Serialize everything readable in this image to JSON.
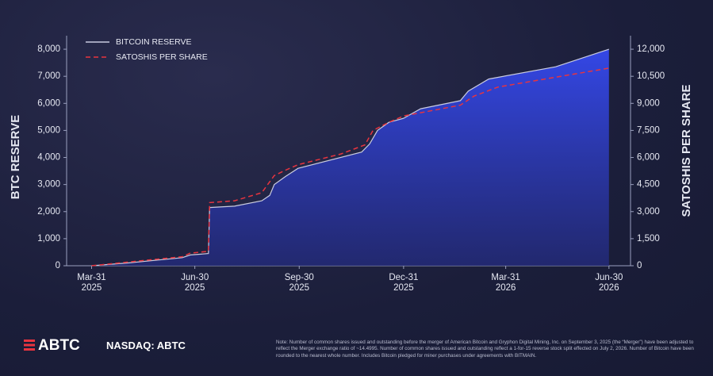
{
  "chart_data": {
    "type": "line",
    "y_label": "BTC RESERVE",
    "y2_label": "SATOSHIS PER SHARE",
    "xlim": [
      "2025-03-09",
      "2026-07-19"
    ],
    "xticks": [
      {
        "value": "2025-03-31",
        "label": [
          "Mar-31",
          "2025"
        ]
      },
      {
        "value": "2025-06-30",
        "label": [
          "Jun-30",
          "2025"
        ]
      },
      {
        "value": "2025-09-30",
        "label": [
          "Sep-30",
          "2025"
        ]
      },
      {
        "value": "2025-12-31",
        "label": [
          "Dec-31",
          "2025"
        ]
      },
      {
        "value": "2026-03-31",
        "label": [
          "Mar-31",
          "2026"
        ]
      },
      {
        "value": "2026-06-30",
        "label": [
          "Jun-30",
          "2026"
        ]
      }
    ],
    "ylim": [
      0,
      8500
    ],
    "yticks": [
      0,
      {
        "value": 1000,
        "label": "1,000"
      },
      {
        "value": 2000,
        "label": "2,000"
      },
      {
        "value": 3000,
        "label": "3,000"
      },
      {
        "value": 4000,
        "label": "4,000"
      },
      {
        "value": 5000,
        "label": "5,000"
      },
      {
        "value": 6000,
        "label": "6,000"
      },
      {
        "value": 7000,
        "label": "7,000"
      },
      {
        "value": 8000,
        "label": "8,000"
      }
    ],
    "y2lim": [
      0,
      12750
    ],
    "y2ticks": [
      0,
      {
        "value": 1500,
        "label": "1,500"
      },
      {
        "value": 3000,
        "label": "3,000"
      },
      {
        "value": 4500,
        "label": "4,500"
      },
      {
        "value": 6000,
        "label": "6,000"
      },
      {
        "value": 7500,
        "label": "7,500"
      },
      {
        "value": 9000,
        "label": "9,000"
      },
      {
        "value": 10500,
        "label": "10,500"
      },
      {
        "value": 12000,
        "label": "12,000"
      }
    ],
    "series": [
      {
        "name": "BITCOIN RESERVE",
        "color": "#c9cbe0",
        "area": true,
        "dash": false,
        "x": [
          "2025-03-31",
          "2025-05-01",
          "2025-06-19",
          "2025-06-26",
          "2025-07-12",
          "2025-07-13",
          "2025-08-04",
          "2025-08-28",
          "2025-09-04",
          "2025-09-08",
          "2025-09-18",
          "2025-09-29",
          "2025-11-24",
          "2025-12-01",
          "2025-12-08",
          "2025-12-18",
          "2025-12-31",
          "2026-01-15",
          "2026-02-19",
          "2026-02-26",
          "2026-03-16",
          "2026-05-14",
          "2026-06-30"
        ],
        "values": [
          0,
          100,
          300,
          400,
          450,
          2150,
          2200,
          2400,
          2600,
          3000,
          3300,
          3600,
          4200,
          4500,
          5000,
          5300,
          5450,
          5800,
          6100,
          6450,
          6900,
          7350,
          8000
        ]
      },
      {
        "name": "SATOSHIS PER SHARE",
        "color": "#e8343f",
        "area": false,
        "dash": true,
        "axis": "y2",
        "x": [
          "2025-03-31",
          "2025-05-01",
          "2025-06-19",
          "2025-06-26",
          "2025-07-12",
          "2025-07-13",
          "2025-08-04",
          "2025-08-28",
          "2025-09-08",
          "2025-09-18",
          "2025-09-29",
          "2025-11-06",
          "2025-11-27",
          "2025-12-04",
          "2025-12-18",
          "2025-12-31",
          "2026-01-21",
          "2026-02-19",
          "2026-03-03",
          "2026-03-24",
          "2026-05-14",
          "2026-06-30"
        ],
        "values": [
          0,
          200,
          500,
          700,
          800,
          3500,
          3600,
          4050,
          5000,
          5300,
          5600,
          6200,
          6700,
          7500,
          7950,
          8300,
          8550,
          8900,
          9400,
          9900,
          10450,
          10950
        ]
      }
    ]
  },
  "footer": {
    "logo": "ABTC",
    "ticker": "NASDAQ: ABTC",
    "note": "Note: Number of common shares issued and outstanding before the merger of American Bitcoin and Gryphon Digital Mining, Inc. on September 3, 2025 (the “Merger”) have been adjusted to reflect the Merger exchange ratio of ~14.4995. Number of common shares issued and outstanding reflect a 1-for-15 reverse stock split effected on July 2, 2026. Number of Bitcoin have been rounded to the nearest whole number. Includes Bitcoin pledged for miner purchases under agreements with BITMAIN."
  }
}
